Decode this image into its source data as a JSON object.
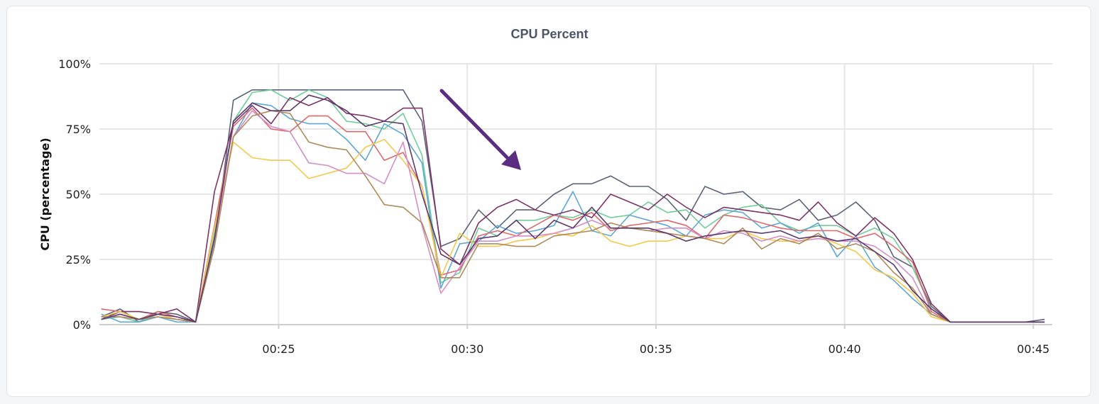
{
  "chart_data": {
    "type": "line",
    "title": "CPU Percent",
    "xlabel": "",
    "ylabel": "CPU (percentage)",
    "ylim": [
      0,
      100
    ],
    "xlim_minutes": [
      20.25,
      45.5
    ],
    "grid": true,
    "legend": "none",
    "yticks": [
      {
        "value": 0,
        "label": "0%"
      },
      {
        "value": 25,
        "label": "25%"
      },
      {
        "value": 50,
        "label": "50%"
      },
      {
        "value": 75,
        "label": "75%"
      },
      {
        "value": 100,
        "label": "100%"
      }
    ],
    "xticks": [
      {
        "value": 25,
        "label": "00:25"
      },
      {
        "value": 30,
        "label": "00:30"
      },
      {
        "value": 35,
        "label": "00:35"
      },
      {
        "value": 40,
        "label": "00:40"
      },
      {
        "value": 45,
        "label": "00:45"
      }
    ],
    "x": [
      20.3,
      20.8,
      21.3,
      21.8,
      22.3,
      22.8,
      23.3,
      23.8,
      24.3,
      24.8,
      25.3,
      25.8,
      26.3,
      26.8,
      27.3,
      27.8,
      28.3,
      28.8,
      29.3,
      29.8,
      30.3,
      30.8,
      31.3,
      31.8,
      32.3,
      32.8,
      33.3,
      33.8,
      34.3,
      34.8,
      35.3,
      35.8,
      36.3,
      36.8,
      37.3,
      37.8,
      38.3,
      38.8,
      39.3,
      39.8,
      40.3,
      40.8,
      41.3,
      41.8,
      42.3,
      42.8,
      43.3,
      43.8,
      44.3,
      44.8,
      45.3
    ],
    "series": [
      {
        "color": "#5a6478",
        "values": [
          3,
          6,
          1,
          5,
          4,
          1,
          30,
          86,
          90,
          90,
          90,
          90,
          90,
          90,
          90,
          90,
          90,
          78,
          30,
          33,
          44,
          37,
          44,
          44,
          50,
          54,
          54,
          57,
          53,
          53,
          48,
          40,
          53,
          50,
          51,
          45,
          44,
          48,
          40,
          42,
          47,
          40,
          26,
          22,
          7,
          1,
          1,
          1,
          1,
          1,
          2
        ]
      },
      {
        "color": "#6fcf97",
        "values": [
          2,
          3,
          1,
          4,
          2,
          1,
          35,
          78,
          89,
          90,
          86,
          90,
          87,
          78,
          77,
          75,
          81,
          65,
          16,
          20,
          37,
          34,
          40,
          40,
          42,
          41,
          44,
          41,
          42,
          47,
          43,
          44,
          37,
          42,
          45,
          46,
          39,
          36,
          38,
          38,
          34,
          37,
          33,
          22,
          6,
          1,
          1,
          1,
          1,
          1,
          1
        ]
      },
      {
        "color": "#5fa7d6",
        "values": [
          4,
          1,
          1,
          3,
          1,
          1,
          32,
          72,
          85,
          84,
          79,
          77,
          77,
          71,
          63,
          77,
          73,
          62,
          14,
          31,
          32,
          38,
          35,
          36,
          38,
          51,
          36,
          34,
          42,
          40,
          38,
          34,
          42,
          44,
          43,
          37,
          39,
          35,
          39,
          26,
          34,
          22,
          17,
          10,
          4,
          1,
          1,
          1,
          1,
          1,
          1
        ]
      },
      {
        "color": "#e0686b",
        "values": [
          6,
          5,
          2,
          5,
          3,
          1,
          38,
          76,
          83,
          75,
          74,
          80,
          80,
          74,
          74,
          63,
          66,
          53,
          19,
          21,
          34,
          36,
          34,
          38,
          42,
          40,
          43,
          36,
          38,
          39,
          40,
          38,
          33,
          42,
          41,
          39,
          37,
          36,
          36,
          36,
          33,
          35,
          30,
          24,
          5,
          1,
          1,
          1,
          1,
          1,
          1
        ]
      },
      {
        "color": "#7c3467",
        "values": [
          2,
          5,
          5,
          4,
          6,
          1,
          51,
          77,
          84,
          77,
          87,
          84,
          87,
          81,
          80,
          78,
          83,
          83,
          29,
          23,
          39,
          45,
          48,
          44,
          42,
          44,
          41,
          50,
          47,
          44,
          50,
          45,
          41,
          45,
          44,
          43,
          42,
          40,
          47,
          39,
          34,
          41,
          35,
          25,
          8,
          1,
          1,
          1,
          1,
          1,
          1
        ]
      },
      {
        "color": "#f5c84c",
        "values": [
          3,
          5,
          2,
          4,
          2,
          1,
          37,
          70,
          64,
          63,
          63,
          56,
          58,
          60,
          68,
          71,
          63,
          53,
          18,
          35,
          30,
          30,
          32,
          33,
          35,
          34,
          38,
          32,
          30,
          32,
          32,
          34,
          33,
          33,
          36,
          33,
          32,
          32,
          34,
          31,
          28,
          21,
          18,
          12,
          3,
          1,
          1,
          1,
          1,
          1,
          1
        ]
      },
      {
        "color": "#d48ec8",
        "values": [
          3,
          3,
          2,
          3,
          2,
          1,
          33,
          72,
          82,
          76,
          74,
          62,
          61,
          58,
          58,
          54,
          70,
          38,
          12,
          22,
          32,
          32,
          34,
          34,
          35,
          37,
          40,
          37,
          37,
          36,
          37,
          37,
          33,
          36,
          35,
          32,
          34,
          32,
          33,
          32,
          32,
          30,
          25,
          18,
          4,
          1,
          1,
          1,
          1,
          1,
          1
        ]
      },
      {
        "color": "#b08a5a",
        "values": [
          3,
          3,
          2,
          3,
          2,
          1,
          30,
          72,
          80,
          82,
          81,
          70,
          68,
          67,
          57,
          46,
          45,
          39,
          18,
          18,
          31,
          31,
          30,
          30,
          34,
          35,
          36,
          39,
          37,
          36,
          35,
          34,
          33,
          31,
          37,
          29,
          33,
          31,
          35,
          29,
          31,
          28,
          20,
          14,
          4,
          1,
          1,
          1,
          1,
          1,
          1
        ]
      },
      {
        "color": "#5b3a6e",
        "values": [
          2,
          4,
          2,
          4,
          3,
          1,
          33,
          78,
          85,
          82,
          82,
          88,
          86,
          82,
          76,
          78,
          77,
          50,
          27,
          23,
          33,
          34,
          40,
          33,
          40,
          37,
          45,
          37,
          37,
          37,
          35,
          32,
          34,
          35,
          36,
          35,
          36,
          33,
          34,
          32,
          33,
          28,
          23,
          13,
          6,
          1,
          1,
          1,
          1,
          1,
          1
        ]
      }
    ]
  },
  "annotation": {
    "color": "#5b2d82",
    "icon": "arrow-icon"
  }
}
